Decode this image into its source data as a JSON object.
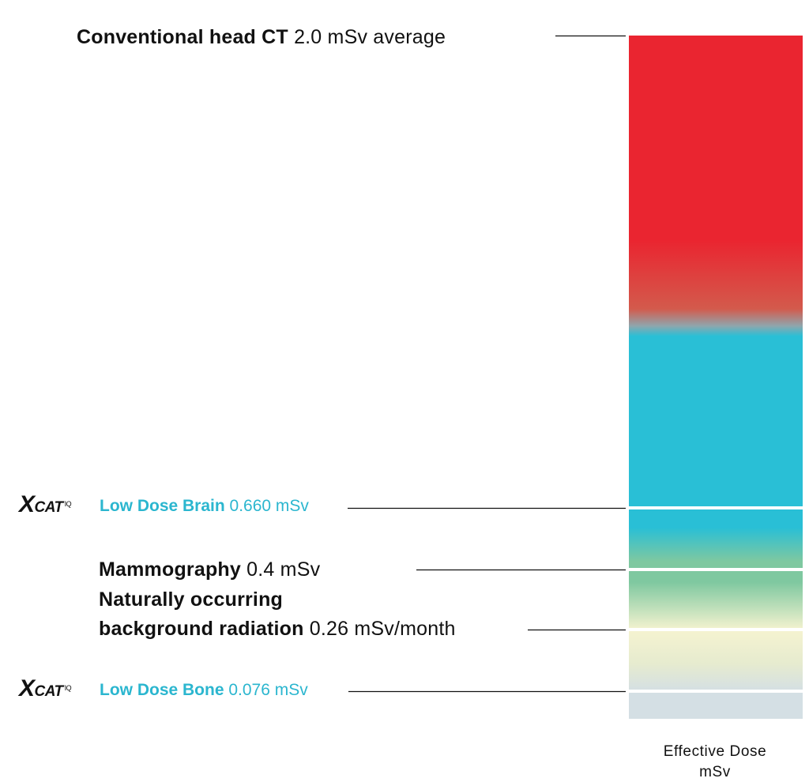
{
  "chart_data": {
    "type": "bar",
    "title": "",
    "ylabel": "Effective Dose\nmSv",
    "ylabel_lines": [
      "Effective Dose",
      "mSv"
    ],
    "ylim": [
      0,
      2.0
    ],
    "colors": {
      "high": "#ea2530",
      "mid": "#29bfd6",
      "green": "#7fc8a0",
      "cream": "#f5f3d0",
      "low": "#d4dfe4",
      "accent_text": "#2bb6cf",
      "separator": "#ffffff",
      "leader": "#111111"
    },
    "markers": [
      {
        "name": "Conventional head CT",
        "value": 2.0,
        "value_text": "2.0 mSv average",
        "style": "dark"
      },
      {
        "name": "Low Dose Brain",
        "value": 0.66,
        "value_text": "0.660 mSv",
        "style": "accent",
        "logo": "XCAT IQ"
      },
      {
        "name": "Mammography",
        "value": 0.4,
        "value_text": "0.4 mSv",
        "style": "dark"
      },
      {
        "name": "Naturally occurring background radiation",
        "name_lines": [
          "Naturally occurring",
          "background radiation"
        ],
        "value": 0.26,
        "value_text": "0.26 mSv/month",
        "style": "dark"
      },
      {
        "name": "Low Dose Bone",
        "value": 0.076,
        "value_text": "0.076 mSv",
        "style": "accent",
        "logo": "XCAT IQ"
      }
    ]
  },
  "logo": {
    "mark": "X",
    "word": "CAT",
    "sup": "IQ"
  }
}
